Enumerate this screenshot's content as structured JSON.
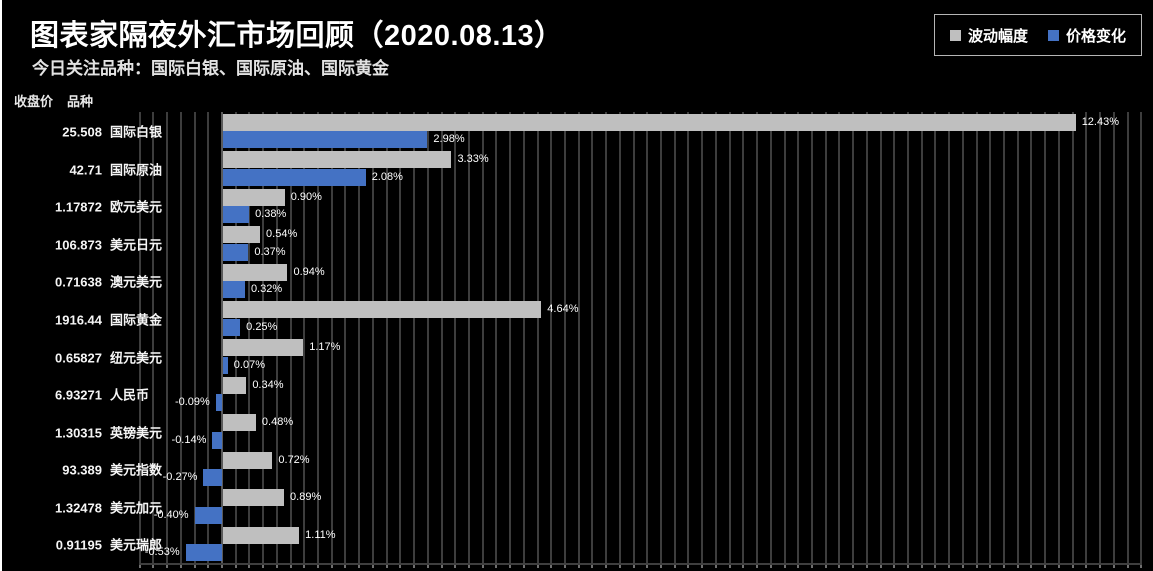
{
  "page": {
    "background": "#000000",
    "page_edge_color": "#ffffff"
  },
  "header": {
    "title": "图表家隔夜外汇市场回顾（2020.08.13）",
    "subtitle": "今日关注品种：国际白银、国际原油、国际黄金"
  },
  "legend": {
    "items": [
      {
        "label": "波动幅度",
        "color": "#bfbfbf"
      },
      {
        "label": "价格变化",
        "color": "#4472c4"
      }
    ]
  },
  "table_header": {
    "close_price": "收盘价",
    "symbol": "品种"
  },
  "chart_data": {
    "type": "bar",
    "orientation": "horizontal",
    "title": "图表家隔夜外汇市场回顾（2020.08.13）",
    "unit": "%",
    "categories": [
      "国际白银",
      "国际原油",
      "欧元美元",
      "美元日元",
      "澳元美元",
      "国际黄金",
      "纽元美元",
      "人民币",
      "英镑美元",
      "美元指数",
      "美元加元",
      "美元瑞郎"
    ],
    "close_prices": [
      "25.508",
      "42.71",
      "1.17872",
      "106.873",
      "0.71638",
      "1916.44",
      "0.65827",
      "6.93271",
      "1.30315",
      "93.389",
      "1.32478",
      "0.91195"
    ],
    "series": [
      {
        "name": "波动幅度",
        "color": "#bfbfbf",
        "values": [
          12.43,
          3.33,
          0.9,
          0.54,
          0.94,
          4.64,
          1.17,
          0.34,
          0.48,
          0.72,
          0.89,
          1.11
        ],
        "labels": [
          "12.43%",
          "3.33%",
          "0.90%",
          "0.54%",
          "0.94%",
          "4.64%",
          "1.17%",
          "0.34%",
          "0.48%",
          "0.72%",
          "0.89%",
          "1.11%"
        ]
      },
      {
        "name": "价格变化",
        "color": "#4472c4",
        "values": [
          2.98,
          2.08,
          0.38,
          0.37,
          0.32,
          0.25,
          0.07,
          -0.09,
          -0.14,
          -0.27,
          -0.4,
          -0.53
        ],
        "labels": [
          "2.98%",
          "2.08%",
          "0.38%",
          "0.37%",
          "0.32%",
          "0.25%",
          "0.07%",
          "-0.09%",
          "-0.14%",
          "-0.27%",
          "-0.40%",
          "-0.53%"
        ]
      }
    ],
    "axis": {
      "grid_min": -1.2,
      "grid_max": 13.4,
      "grid_step": 0.2,
      "grid_color": "#3d3d3d",
      "zero_line_color": "#5a5a5a",
      "legend_position": "top-right",
      "grid_on": true
    }
  }
}
